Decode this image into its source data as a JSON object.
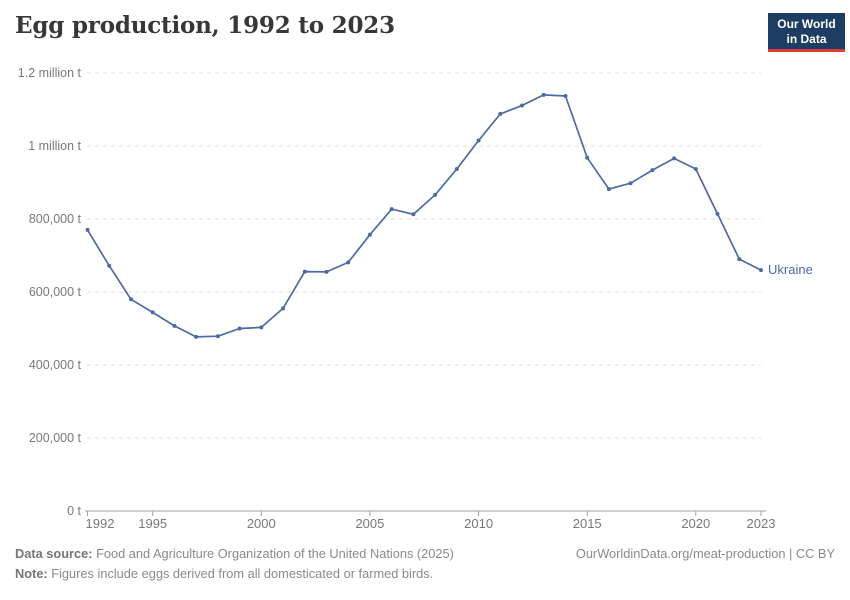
{
  "header": {
    "title": "Egg production, 1992 to 2023",
    "logo": {
      "line1": "Our World",
      "line2": "in Data"
    }
  },
  "colors": {
    "series": "#4d6ba3",
    "logo_bg": "#1d3d63",
    "logo_accent": "#dc3c34",
    "grid": "#e4e4e4",
    "axis": "#a1a1a1",
    "tick_text": "#787878"
  },
  "chart_data": {
    "type": "line",
    "title": "Egg production, 1992 to 2023",
    "entity": "Ukraine",
    "unit": "t",
    "x": [
      1992,
      1993,
      1994,
      1995,
      1996,
      1997,
      1998,
      1999,
      2000,
      2001,
      2002,
      2003,
      2004,
      2005,
      2006,
      2007,
      2008,
      2009,
      2010,
      2011,
      2012,
      2013,
      2014,
      2015,
      2016,
      2017,
      2018,
      2019,
      2020,
      2021,
      2022,
      2023
    ],
    "series": [
      {
        "name": "Ukraine",
        "values": [
          770000,
          672000,
          580000,
          544000,
          507000,
          477000,
          479000,
          500000,
          503000,
          555000,
          656000,
          655000,
          681000,
          757000,
          827000,
          813000,
          866000,
          937000,
          1015000,
          1088000,
          1111000,
          1140000,
          1137000,
          968000,
          882000,
          898000,
          934000,
          966000,
          937000,
          814000,
          690000,
          660000
        ]
      }
    ],
    "xticks": [
      1992,
      1995,
      2000,
      2005,
      2010,
      2015,
      2020,
      2023
    ],
    "yticks": [
      {
        "value": 0,
        "label": "0 t"
      },
      {
        "value": 200000,
        "label": "200,000 t"
      },
      {
        "value": 400000,
        "label": "400,000 t"
      },
      {
        "value": 600000,
        "label": "600,000 t"
      },
      {
        "value": 800000,
        "label": "800,000 t"
      },
      {
        "value": 1000000,
        "label": "1 million t"
      },
      {
        "value": 1200000,
        "label": "1.2 million t"
      }
    ],
    "xlim": [
      1992,
      2023
    ],
    "ylim": [
      0,
      1200000
    ],
    "grid": "horizontal-dashed",
    "legend_position": "line-end-label"
  },
  "footer": {
    "source_label": "Data source:",
    "source_text": " Food and Agriculture Organization of the United Nations (2025)",
    "note_label": "Note:",
    "note_text": " Figures include eggs derived from all domesticated or farmed birds.",
    "link": "OurWorldinData.org/meat-production | CC BY"
  }
}
